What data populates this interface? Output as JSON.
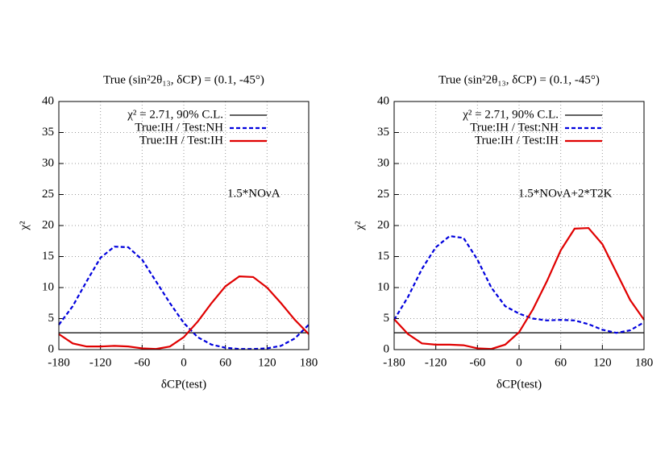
{
  "chart_data": [
    {
      "type": "line",
      "title": "True (sin²2θ₁₃, δCP) = (0.1, -45°)",
      "xlabel": "δCP(test)",
      "ylabel": "χ²",
      "annotation": "1.5*NOνA",
      "x": [
        -180,
        -160,
        -140,
        -120,
        -100,
        -80,
        -60,
        -40,
        -20,
        0,
        20,
        40,
        60,
        80,
        100,
        120,
        140,
        160,
        180
      ],
      "series": [
        {
          "name": "χ² = 2.71, 90% C.L.",
          "color": "#000000",
          "dashed": false,
          "values": [
            2.71,
            2.71,
            2.71,
            2.71,
            2.71,
            2.71,
            2.71,
            2.71,
            2.71,
            2.71,
            2.71,
            2.71,
            2.71,
            2.71,
            2.71,
            2.71,
            2.71,
            2.71,
            2.71
          ]
        },
        {
          "name": "True:IH / Test:NH",
          "color": "#0000dd",
          "dashed": true,
          "values": [
            4,
            7,
            11,
            14.8,
            16.6,
            16.5,
            14.5,
            11,
            7.5,
            4.3,
            2,
            0.8,
            0.3,
            0.1,
            0.1,
            0.2,
            0.6,
            1.8,
            4
          ]
        },
        {
          "name": "True:IH / Test:IH",
          "color": "#e00000",
          "dashed": false,
          "values": [
            2.5,
            1,
            0.5,
            0.5,
            0.6,
            0.5,
            0.2,
            0.1,
            0.5,
            2,
            4.5,
            7.5,
            10.2,
            11.8,
            11.7,
            10,
            7.5,
            4.8,
            2.5
          ]
        }
      ],
      "xlim": [
        -180,
        180
      ],
      "xticks": [
        -180,
        -120,
        -60,
        0,
        60,
        120,
        180
      ],
      "ylim": [
        0,
        40
      ],
      "yticks": [
        0,
        5,
        10,
        15,
        20,
        25,
        30,
        35,
        40
      ],
      "grid": true,
      "legend": "top-right"
    },
    {
      "type": "line",
      "title": "True (sin²2θ₁₃, δCP) = (0.1, -45°)",
      "xlabel": "δCP(test)",
      "ylabel": "χ²",
      "annotation": "1.5*NOνA+2*T2K",
      "x": [
        -180,
        -160,
        -140,
        -120,
        -100,
        -80,
        -60,
        -40,
        -20,
        0,
        20,
        40,
        60,
        80,
        100,
        120,
        140,
        160,
        180
      ],
      "series": [
        {
          "name": "χ² = 2.71, 90% C.L.",
          "color": "#000000",
          "dashed": false,
          "values": [
            2.71,
            2.71,
            2.71,
            2.71,
            2.71,
            2.71,
            2.71,
            2.71,
            2.71,
            2.71,
            2.71,
            2.71,
            2.71,
            2.71,
            2.71,
            2.71,
            2.71,
            2.71,
            2.71
          ]
        },
        {
          "name": "True:IH / Test:NH",
          "color": "#0000dd",
          "dashed": true,
          "values": [
            4.8,
            8.5,
            13,
            16.5,
            18.3,
            18,
            14.5,
            10,
            7,
            5.8,
            5,
            4.7,
            4.8,
            4.7,
            4.1,
            3.2,
            2.7,
            3.1,
            4.4
          ]
        },
        {
          "name": "True:IH / Test:IH",
          "color": "#e00000",
          "dashed": false,
          "values": [
            4.9,
            2.5,
            1,
            0.8,
            0.8,
            0.7,
            0.2,
            0.1,
            0.8,
            2.8,
            6.5,
            11,
            16,
            19.5,
            19.6,
            17,
            12.5,
            8,
            4.8
          ]
        }
      ],
      "xlim": [
        -180,
        180
      ],
      "xticks": [
        -180,
        -120,
        -60,
        0,
        60,
        120,
        180
      ],
      "ylim": [
        0,
        40
      ],
      "yticks": [
        0,
        5,
        10,
        15,
        20,
        25,
        30,
        35,
        40
      ],
      "grid": true,
      "legend": "top-right"
    }
  ]
}
